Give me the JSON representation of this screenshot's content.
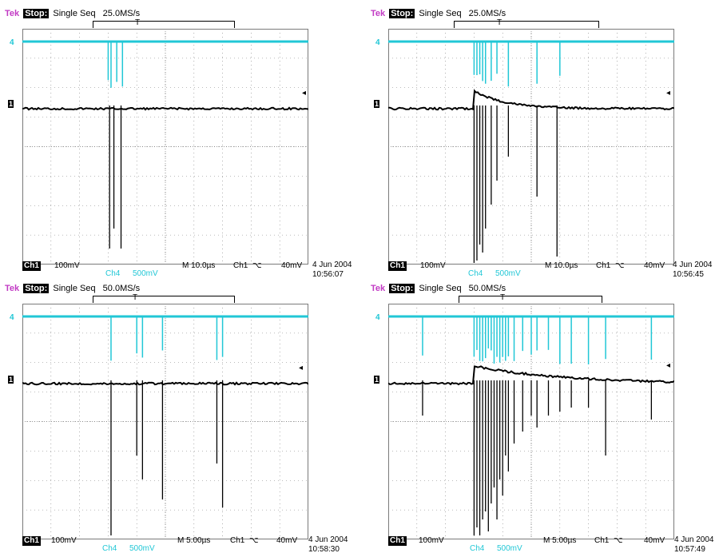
{
  "scopes": [
    {
      "brand": "Tek",
      "state": "Stop:",
      "mode": "Single Seq",
      "sample_rate": "25.0MS/s",
      "trigger_marker": "T",
      "ch1_scale": "Ch1",
      "ch1_value": "100mV",
      "ch4_label": "Ch4",
      "ch4_value": "500mV",
      "timebase": "M 10.0µs",
      "trig_source": "Ch1",
      "trig_level": "40mV",
      "date": "4 Jun 2004",
      "time": "10:56:07",
      "ch4_marker": "4",
      "ch1_marker": "1"
    },
    {
      "brand": "Tek",
      "state": "Stop:",
      "mode": "Single Seq",
      "sample_rate": "25.0MS/s",
      "trigger_marker": "T",
      "ch1_scale": "Ch1",
      "ch1_value": "100mV",
      "ch4_label": "Ch4",
      "ch4_value": "500mV",
      "timebase": "M 10.0µs",
      "trig_source": "Ch1",
      "trig_level": "40mV",
      "date": "4 Jun 2004",
      "time": "10:56:45",
      "ch4_marker": "4",
      "ch1_marker": "1"
    },
    {
      "brand": "Tek",
      "state": "Stop:",
      "mode": "Single Seq",
      "sample_rate": "50.0MS/s",
      "trigger_marker": "T",
      "ch1_scale": "Ch1",
      "ch1_value": "100mV",
      "ch4_label": "Ch4",
      "ch4_value": "500mV",
      "timebase": "M 5.00µs",
      "trig_source": "Ch1",
      "trig_level": "40mV",
      "date": "4 Jun 2004",
      "time": "10:58:30",
      "ch4_marker": "4",
      "ch1_marker": "1"
    },
    {
      "brand": "Tek",
      "state": "Stop:",
      "mode": "Single Seq",
      "sample_rate": "50.0MS/s",
      "trigger_marker": "T",
      "ch1_scale": "Ch1",
      "ch1_value": "100mV",
      "ch4_label": "Ch4",
      "ch4_value": "500mV",
      "timebase": "M 5.00µs",
      "trig_source": "Ch1",
      "trig_level": "40mV",
      "date": "4 Jun 2004",
      "time": "10:57:49",
      "ch4_marker": "4",
      "ch1_marker": "1"
    }
  ],
  "colors": {
    "ch1_trace": "#000000",
    "ch4_trace": "#21c7d6",
    "brand": "#c23bc4",
    "grid": "#7a7a7a"
  }
}
